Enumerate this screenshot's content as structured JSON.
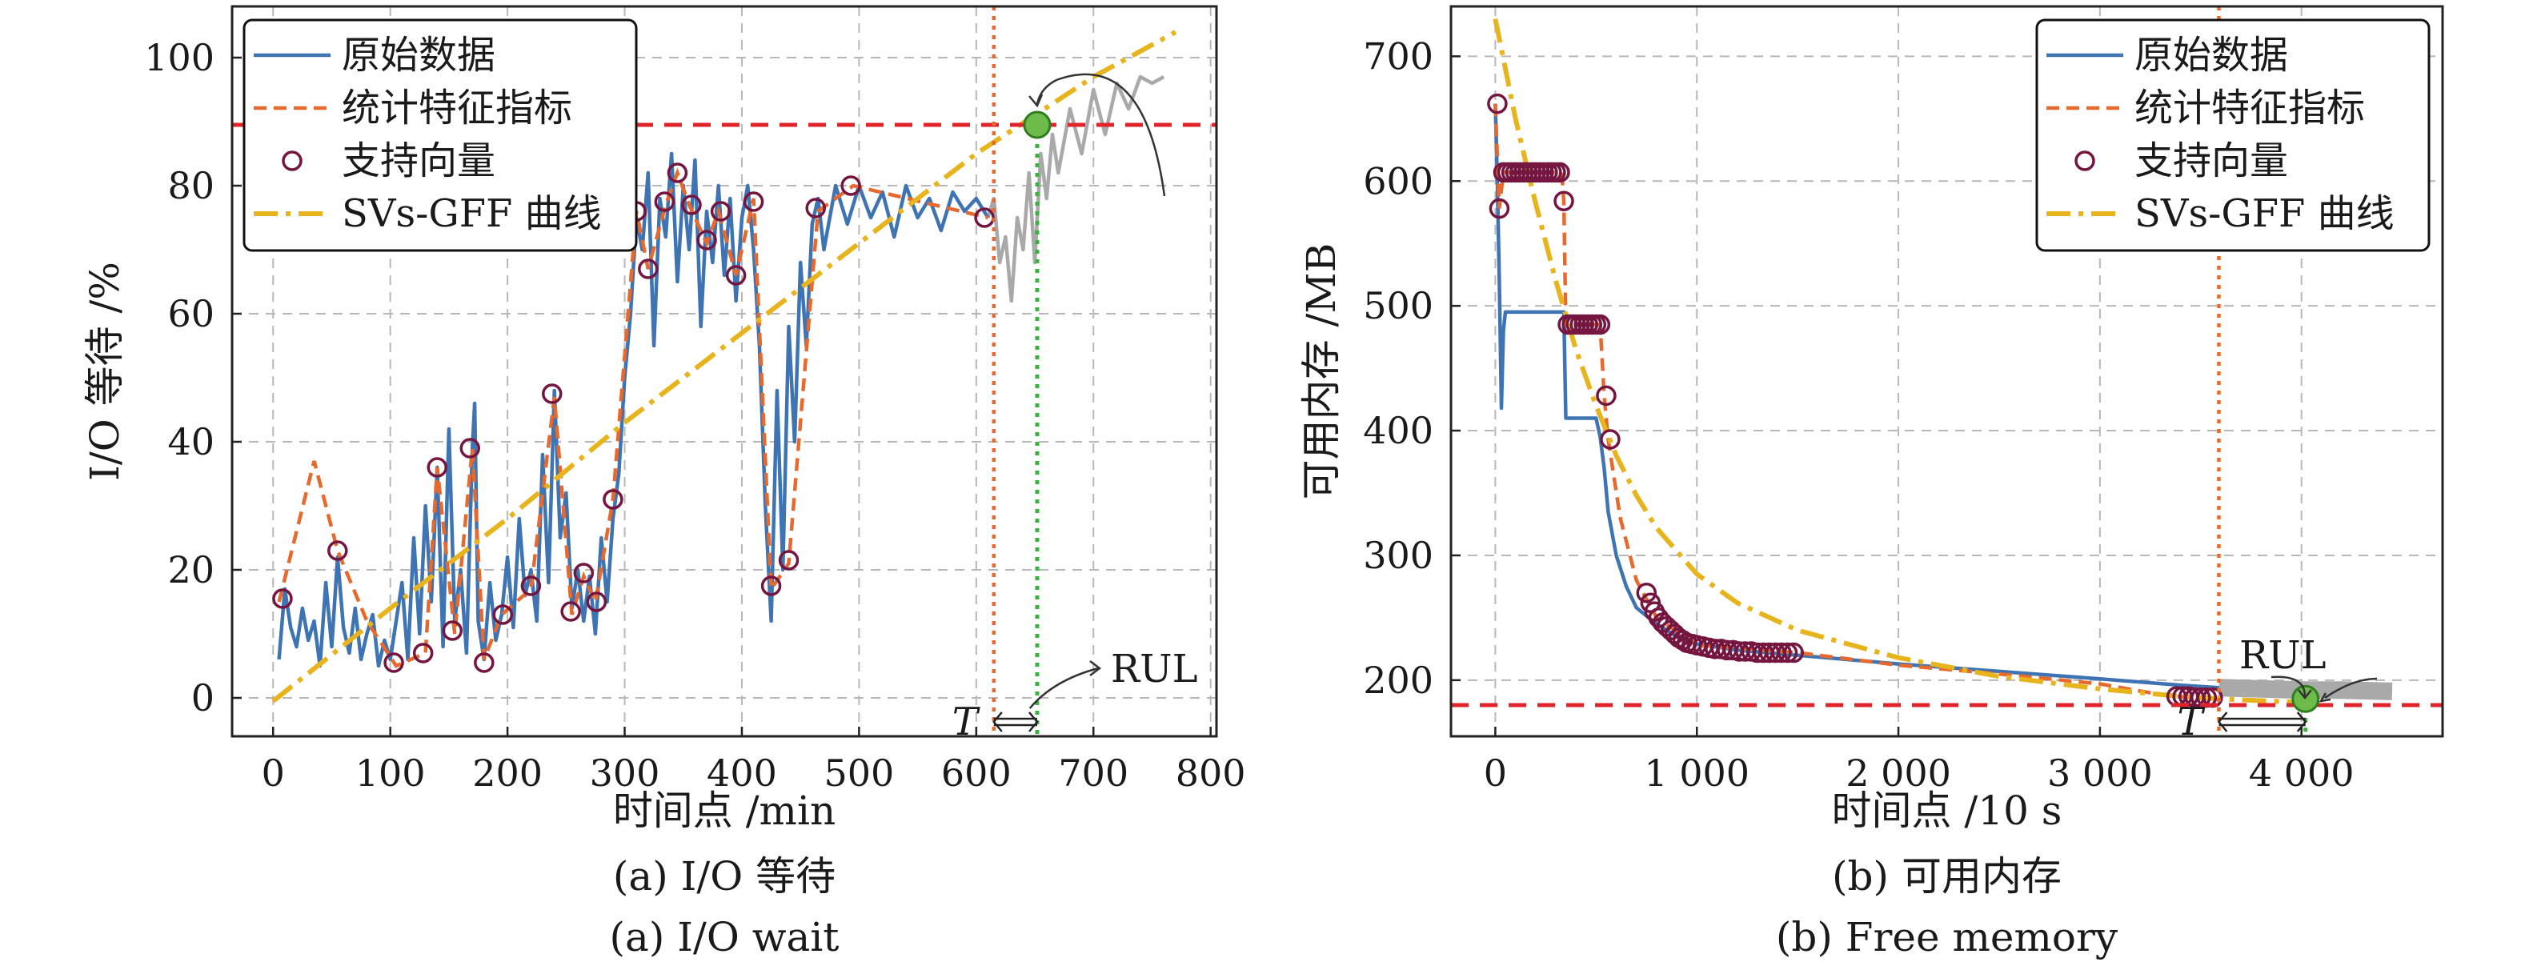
{
  "chart_data": [
    {
      "type": "line",
      "panel": "a",
      "xlabel": "时间点 /min",
      "ylabel": "I/O 等待 /%",
      "caption_cn": "(a) I/O 等待",
      "caption_en": "(a) I/O wait",
      "xlim": [
        -35,
        805
      ],
      "ylim": [
        -6,
        108
      ],
      "xticks": [
        0,
        100,
        200,
        300,
        400,
        500,
        600,
        700,
        800
      ],
      "xtick_labels": [
        "0",
        "100",
        "200",
        "300",
        "400",
        "500",
        "600",
        "700",
        "800"
      ],
      "yticks": [
        0,
        20,
        40,
        60,
        80,
        100
      ],
      "ytick_labels": [
        "0",
        "20",
        "40",
        "60",
        "80",
        "100"
      ],
      "grid": true,
      "legend_position": "top-left",
      "legend": [
        "原始数据",
        "统计特征指标",
        "支持向量",
        "SVs-GFF 曲线"
      ],
      "threshold": 89.5,
      "T": 615,
      "failure_x": 652,
      "failure_y": 89.5,
      "annotations": {
        "rul": "RUL",
        "t": "T"
      },
      "raw_data": [
        [
          5,
          6
        ],
        [
          10,
          17
        ],
        [
          15,
          11
        ],
        [
          20,
          8
        ],
        [
          25,
          14
        ],
        [
          30,
          9
        ],
        [
          35,
          12
        ],
        [
          40,
          5
        ],
        [
          45,
          18
        ],
        [
          50,
          8
        ],
        [
          55,
          22
        ],
        [
          60,
          11
        ],
        [
          65,
          7
        ],
        [
          70,
          14
        ],
        [
          75,
          6
        ],
        [
          80,
          10
        ],
        [
          85,
          13
        ],
        [
          90,
          5
        ],
        [
          95,
          9
        ],
        [
          100,
          6
        ],
        [
          105,
          12
        ],
        [
          110,
          18
        ],
        [
          115,
          6
        ],
        [
          120,
          25
        ],
        [
          125,
          10
        ],
        [
          130,
          30
        ],
        [
          135,
          15
        ],
        [
          140,
          36
        ],
        [
          145,
          8
        ],
        [
          150,
          42
        ],
        [
          155,
          12
        ],
        [
          160,
          20
        ],
        [
          165,
          7
        ],
        [
          170,
          39
        ],
        [
          172,
          46
        ],
        [
          175,
          12
        ],
        [
          180,
          6
        ],
        [
          185,
          18
        ],
        [
          190,
          9
        ],
        [
          195,
          13
        ],
        [
          200,
          22
        ],
        [
          205,
          11
        ],
        [
          210,
          28
        ],
        [
          215,
          16
        ],
        [
          220,
          20
        ],
        [
          225,
          12
        ],
        [
          230,
          38
        ],
        [
          235,
          18
        ],
        [
          240,
          48
        ],
        [
          245,
          25
        ],
        [
          250,
          32
        ],
        [
          255,
          14
        ],
        [
          260,
          20
        ],
        [
          265,
          12
        ],
        [
          270,
          19
        ],
        [
          275,
          10
        ],
        [
          280,
          25
        ],
        [
          285,
          15
        ],
        [
          290,
          28
        ],
        [
          295,
          35
        ],
        [
          300,
          50
        ],
        [
          305,
          60
        ],
        [
          310,
          75
        ],
        [
          315,
          70
        ],
        [
          320,
          82
        ],
        [
          325,
          55
        ],
        [
          330,
          78
        ],
        [
          335,
          72
        ],
        [
          340,
          85
        ],
        [
          345,
          65
        ],
        [
          350,
          80
        ],
        [
          355,
          70
        ],
        [
          360,
          84
        ],
        [
          365,
          58
        ],
        [
          370,
          76
        ],
        [
          375,
          68
        ],
        [
          380,
          80
        ],
        [
          385,
          66
        ],
        [
          390,
          78
        ],
        [
          395,
          62
        ],
        [
          400,
          75
        ],
        [
          405,
          80
        ],
        [
          410,
          70
        ],
        [
          415,
          55
        ],
        [
          420,
          30
        ],
        [
          425,
          12
        ],
        [
          430,
          48
        ],
        [
          435,
          20
        ],
        [
          440,
          58
        ],
        [
          445,
          40
        ],
        [
          450,
          68
        ],
        [
          455,
          55
        ],
        [
          460,
          74
        ],
        [
          465,
          78
        ],
        [
          470,
          70
        ],
        [
          480,
          80
        ],
        [
          490,
          74
        ],
        [
          500,
          80
        ],
        [
          510,
          75
        ],
        [
          520,
          79
        ],
        [
          530,
          72
        ],
        [
          540,
          80
        ],
        [
          550,
          75
        ],
        [
          560,
          78
        ],
        [
          570,
          73
        ],
        [
          580,
          79
        ],
        [
          590,
          76
        ],
        [
          600,
          78
        ],
        [
          610,
          75
        ]
      ],
      "future_data": [
        [
          610,
          75
        ],
        [
          615,
          78
        ],
        [
          620,
          68
        ],
        [
          625,
          72
        ],
        [
          630,
          62
        ],
        [
          635,
          75
        ],
        [
          640,
          70
        ],
        [
          645,
          82
        ],
        [
          650,
          68
        ],
        [
          655,
          85
        ],
        [
          660,
          78
        ],
        [
          665,
          88
        ],
        [
          670,
          82
        ],
        [
          680,
          92
        ],
        [
          690,
          85
        ],
        [
          700,
          95
        ],
        [
          710,
          88
        ],
        [
          720,
          96
        ],
        [
          730,
          92
        ],
        [
          740,
          97
        ],
        [
          750,
          96
        ],
        [
          760,
          97
        ]
      ],
      "stat_data": [
        [
          5,
          15
        ],
        [
          35,
          37
        ],
        [
          55,
          23
        ],
        [
          80,
          12
        ],
        [
          105,
          5
        ],
        [
          130,
          7
        ],
        [
          140,
          36
        ],
        [
          155,
          10
        ],
        [
          170,
          39
        ],
        [
          180,
          6
        ],
        [
          195,
          13
        ],
        [
          220,
          17
        ],
        [
          240,
          47
        ],
        [
          255,
          13
        ],
        [
          265,
          19
        ],
        [
          275,
          15
        ],
        [
          290,
          31
        ],
        [
          310,
          76
        ],
        [
          320,
          67
        ],
        [
          335,
          77
        ],
        [
          345,
          82
        ],
        [
          355,
          77
        ],
        [
          370,
          71
        ],
        [
          380,
          76
        ],
        [
          395,
          66
        ],
        [
          410,
          78
        ],
        [
          425,
          17
        ],
        [
          440,
          21
        ],
        [
          465,
          76
        ],
        [
          495,
          80
        ],
        [
          610,
          75
        ]
      ],
      "support_vectors": [
        [
          8,
          15.5
        ],
        [
          55,
          23
        ],
        [
          103,
          5.5
        ],
        [
          128,
          7
        ],
        [
          140,
          36
        ],
        [
          153,
          10.5
        ],
        [
          168,
          39
        ],
        [
          180,
          5.5
        ],
        [
          196,
          13
        ],
        [
          220,
          17.5
        ],
        [
          238,
          47.5
        ],
        [
          254,
          13.5
        ],
        [
          265,
          19.5
        ],
        [
          276,
          15
        ],
        [
          290,
          31
        ],
        [
          310,
          76
        ],
        [
          320,
          67
        ],
        [
          334,
          77.5
        ],
        [
          345,
          82
        ],
        [
          357,
          77
        ],
        [
          370,
          71.5
        ],
        [
          382,
          76
        ],
        [
          395,
          66
        ],
        [
          410,
          77.5
        ],
        [
          425,
          17.5
        ],
        [
          440,
          21.5
        ],
        [
          463,
          76.5
        ],
        [
          493,
          80
        ],
        [
          607,
          75
        ]
      ],
      "gff_curve": [
        [
          0,
          -0.5
        ],
        [
          100,
          14
        ],
        [
          200,
          28
        ],
        [
          300,
          43
        ],
        [
          400,
          57
        ],
        [
          500,
          71
        ],
        [
          600,
          85
        ],
        [
          700,
          97
        ],
        [
          770,
          104
        ]
      ]
    },
    {
      "type": "line",
      "panel": "b",
      "xlabel": "时间点 /10 s",
      "ylabel": "可用内存 /MB",
      "caption_cn": "(b) 可用内存",
      "caption_en": "(b) Free memory",
      "xlim": [
        -220,
        4700
      ],
      "ylim": [
        155,
        740
      ],
      "xticks": [
        0,
        1000,
        2000,
        3000,
        4000
      ],
      "xtick_labels": [
        "0",
        "1 000",
        "2 000",
        "3 000",
        "4 000"
      ],
      "yticks": [
        200,
        300,
        400,
        500,
        600,
        700
      ],
      "ytick_labels": [
        "200",
        "300",
        "400",
        "500",
        "600",
        "700"
      ],
      "grid": true,
      "legend_position": "top-right",
      "legend": [
        "原始数据",
        "统计特征指标",
        "支持向量",
        "SVs-GFF 曲线"
      ],
      "threshold": 180,
      "T": 3590,
      "failure_x": 4020,
      "failure_y": 185,
      "annotations": {
        "rul": "RUL",
        "t": "T"
      },
      "raw_data": [
        [
          0,
          662
        ],
        [
          10,
          600
        ],
        [
          20,
          520
        ],
        [
          30,
          418
        ],
        [
          40,
          480
        ],
        [
          50,
          495
        ],
        [
          100,
          495
        ],
        [
          200,
          495
        ],
        [
          340,
          495
        ],
        [
          350,
          410
        ],
        [
          400,
          410
        ],
        [
          500,
          410
        ],
        [
          520,
          395
        ],
        [
          540,
          370
        ],
        [
          560,
          335
        ],
        [
          600,
          300
        ],
        [
          650,
          275
        ],
        [
          700,
          258
        ],
        [
          800,
          245
        ],
        [
          900,
          235
        ],
        [
          1000,
          229
        ],
        [
          1200,
          224
        ],
        [
          1500,
          220
        ],
        [
          2000,
          213
        ],
        [
          2500,
          207
        ],
        [
          3000,
          201
        ],
        [
          3400,
          196
        ],
        [
          3590,
          194
        ]
      ],
      "future_data": [
        [
          3590,
          194
        ],
        [
          3800,
          193
        ],
        [
          4000,
          192
        ],
        [
          4200,
          192
        ],
        [
          4450,
          191
        ]
      ],
      "stat_data": [
        [
          0,
          662
        ],
        [
          20,
          578
        ],
        [
          40,
          607
        ],
        [
          200,
          607
        ],
        [
          330,
          607
        ],
        [
          340,
          584
        ],
        [
          350,
          485
        ],
        [
          520,
          485
        ],
        [
          540,
          428
        ],
        [
          560,
          393
        ],
        [
          620,
          330
        ],
        [
          700,
          280
        ],
        [
          800,
          250
        ],
        [
          1000,
          228
        ],
        [
          1500,
          222
        ],
        [
          2000,
          212
        ],
        [
          2500,
          205
        ],
        [
          3000,
          197
        ],
        [
          3350,
          187
        ],
        [
          3590,
          186
        ]
      ],
      "support_vectors": [
        [
          10,
          662
        ],
        [
          20,
          578
        ],
        [
          40,
          607
        ],
        [
          60,
          607
        ],
        [
          80,
          607
        ],
        [
          100,
          607
        ],
        [
          120,
          607
        ],
        [
          140,
          607
        ],
        [
          160,
          607
        ],
        [
          180,
          607
        ],
        [
          200,
          607
        ],
        [
          220,
          607
        ],
        [
          240,
          607
        ],
        [
          260,
          607
        ],
        [
          280,
          607
        ],
        [
          300,
          607
        ],
        [
          320,
          607
        ],
        [
          340,
          584
        ],
        [
          360,
          485
        ],
        [
          380,
          485
        ],
        [
          400,
          485
        ],
        [
          420,
          485
        ],
        [
          440,
          485
        ],
        [
          460,
          485
        ],
        [
          480,
          485
        ],
        [
          500,
          485
        ],
        [
          520,
          485
        ],
        [
          550,
          428
        ],
        [
          570,
          393
        ],
        [
          750,
          270
        ],
        [
          770,
          262
        ],
        [
          790,
          255
        ],
        [
          810,
          250
        ],
        [
          830,
          246
        ],
        [
          850,
          243
        ],
        [
          870,
          240
        ],
        [
          890,
          237
        ],
        [
          910,
          234
        ],
        [
          930,
          232
        ],
        [
          950,
          230
        ],
        [
          975,
          229
        ],
        [
          1000,
          228
        ],
        [
          1030,
          227
        ],
        [
          1060,
          226
        ],
        [
          1090,
          225
        ],
        [
          1120,
          225
        ],
        [
          1150,
          224
        ],
        [
          1180,
          224
        ],
        [
          1210,
          223
        ],
        [
          1240,
          223
        ],
        [
          1270,
          223
        ],
        [
          1300,
          222
        ],
        [
          1330,
          222
        ],
        [
          1360,
          222
        ],
        [
          1390,
          222
        ],
        [
          1420,
          222
        ],
        [
          1450,
          222
        ],
        [
          1480,
          222
        ],
        [
          3380,
          187
        ],
        [
          3410,
          187
        ],
        [
          3440,
          187
        ],
        [
          3470,
          186
        ],
        [
          3500,
          186
        ],
        [
          3530,
          186
        ],
        [
          3560,
          186
        ]
      ],
      "gff_curve": [
        [
          0,
          730
        ],
        [
          100,
          650
        ],
        [
          200,
          582
        ],
        [
          300,
          520
        ],
        [
          400,
          465
        ],
        [
          500,
          420
        ],
        [
          600,
          380
        ],
        [
          700,
          348
        ],
        [
          800,
          322
        ],
        [
          1000,
          285
        ],
        [
          1200,
          262
        ],
        [
          1500,
          240
        ],
        [
          2000,
          218
        ],
        [
          2500,
          203
        ],
        [
          3000,
          193
        ],
        [
          3400,
          187
        ],
        [
          3590,
          185
        ],
        [
          4020,
          182
        ]
      ]
    }
  ]
}
